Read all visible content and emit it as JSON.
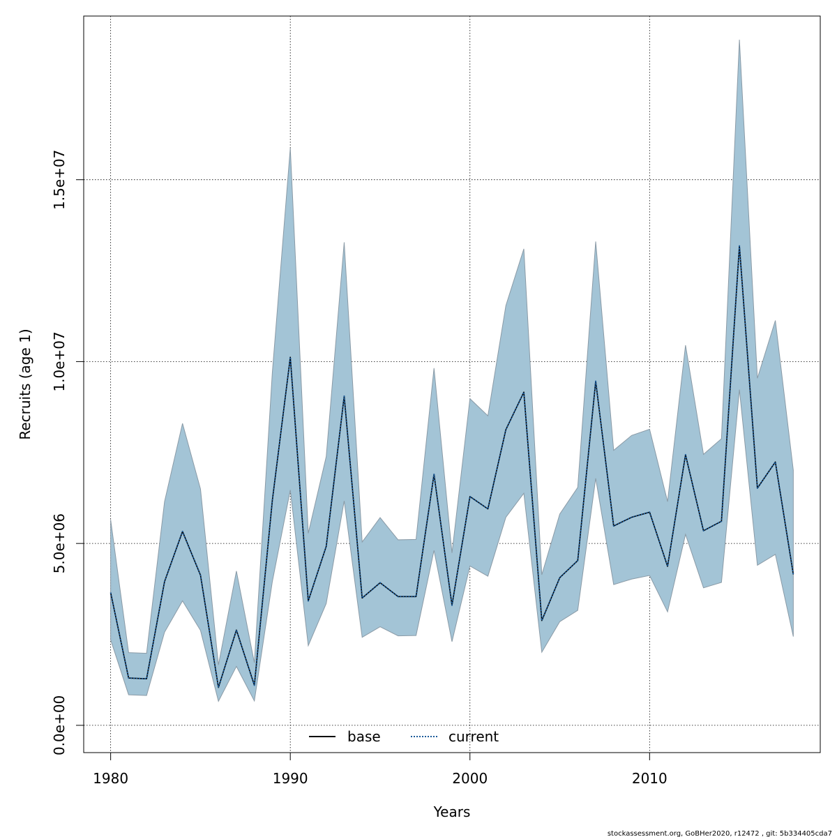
{
  "chart_data": {
    "type": "line",
    "xlabel": "Years",
    "ylabel": "Recruits (age 1)",
    "xlim": [
      1978.5,
      2019.5
    ],
    "ylim": [
      -750000,
      19500000
    ],
    "x_ticks": [
      1980,
      1990,
      2000,
      2010
    ],
    "x_tick_labels": [
      "1980",
      "1990",
      "2000",
      "2010"
    ],
    "y_ticks": [
      0,
      5000000,
      10000000,
      15000000
    ],
    "y_tick_labels": [
      "0.0e+00",
      "5.0e+06",
      "1.0e+07",
      "1.5e+07"
    ],
    "grid": true,
    "legend_position": "bottom",
    "x": [
      1980,
      1981,
      1982,
      1983,
      1984,
      1985,
      1986,
      1987,
      1988,
      1989,
      1990,
      1991,
      1992,
      1993,
      1994,
      1995,
      1996,
      1997,
      1998,
      1999,
      2000,
      2001,
      2002,
      2003,
      2004,
      2005,
      2006,
      2007,
      2008,
      2009,
      2010,
      2011,
      2012,
      2013,
      2014,
      2015,
      2016,
      2017,
      2018
    ],
    "series": [
      {
        "name": "base",
        "style": "solid",
        "color": "#000000",
        "values": [
          3650000,
          1300000,
          1280000,
          3950000,
          5330000,
          4130000,
          1040000,
          2620000,
          1100000,
          6180000,
          10120000,
          3420000,
          4920000,
          9050000,
          3500000,
          3920000,
          3540000,
          3540000,
          6900000,
          3300000,
          6290000,
          5950000,
          8130000,
          9160000,
          2880000,
          4060000,
          4530000,
          9460000,
          5480000,
          5720000,
          5860000,
          4370000,
          7440000,
          5350000,
          5610000,
          13180000,
          6520000,
          7240000,
          4150000
        ]
      },
      {
        "name": "current",
        "style": "dotted",
        "color": "#1a5a99",
        "values": [
          3650000,
          1300000,
          1280000,
          3950000,
          5330000,
          4130000,
          1040000,
          2620000,
          1100000,
          6180000,
          10120000,
          3420000,
          4920000,
          9050000,
          3500000,
          3920000,
          3540000,
          3540000,
          6900000,
          3300000,
          6290000,
          5950000,
          8130000,
          9160000,
          2880000,
          4060000,
          4530000,
          9460000,
          5480000,
          5720000,
          5860000,
          4370000,
          7440000,
          5350000,
          5610000,
          13180000,
          6520000,
          7240000,
          4150000
        ]
      }
    ],
    "band": {
      "color": "#a3c4d6",
      "upper": [
        5650000,
        2000000,
        1980000,
        6150000,
        8300000,
        6500000,
        1660000,
        4240000,
        1720000,
        9700000,
        15870000,
        5280000,
        7390000,
        13280000,
        5040000,
        5710000,
        5100000,
        5110000,
        9820000,
        4740000,
        8980000,
        8510000,
        11540000,
        13100000,
        4140000,
        5810000,
        6540000,
        13300000,
        7560000,
        7970000,
        8140000,
        6150000,
        10450000,
        7450000,
        7880000,
        18850000,
        9540000,
        11130000,
        7010000
      ],
      "lower": [
        2350000,
        840000,
        820000,
        2560000,
        3420000,
        2610000,
        660000,
        1620000,
        670000,
        3950000,
        6470000,
        2190000,
        3350000,
        6170000,
        2420000,
        2710000,
        2460000,
        2470000,
        4810000,
        2300000,
        4380000,
        4100000,
        5720000,
        6380000,
        2010000,
        2850000,
        3160000,
        6790000,
        3870000,
        4020000,
        4120000,
        3120000,
        5250000,
        3780000,
        3930000,
        9230000,
        4400000,
        4700000,
        2440000
      ]
    }
  },
  "footer": "stockassessment.org, GoBHer2020, r12472 , git: 5b334405cda7"
}
